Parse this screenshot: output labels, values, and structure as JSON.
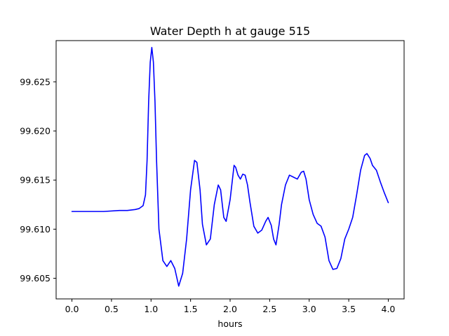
{
  "chart_data": {
    "type": "line",
    "title": "Water Depth h at gauge 515",
    "xlabel": "hours",
    "ylabel": "",
    "xlim": [
      -0.2,
      4.2
    ],
    "ylim": [
      99.6029,
      99.6292
    ],
    "grid": false,
    "xticks": [
      0.0,
      0.5,
      1.0,
      1.5,
      2.0,
      2.5,
      3.0,
      3.5,
      4.0
    ],
    "xtick_labels": [
      "0.0",
      "0.5",
      "1.0",
      "1.5",
      "2.0",
      "2.5",
      "3.0",
      "3.5",
      "4.0"
    ],
    "yticks": [
      99.605,
      99.61,
      99.615,
      99.62,
      99.625
    ],
    "ytick_labels": [
      "99.605",
      "99.610",
      "99.615",
      "99.620",
      "99.625"
    ],
    "series": [
      {
        "color": "#0000ff",
        "x": [
          0.0,
          0.2,
          0.4,
          0.6,
          0.7,
          0.8,
          0.85,
          0.9,
          0.93,
          0.95,
          0.97,
          0.99,
          1.01,
          1.03,
          1.05,
          1.07,
          1.1,
          1.15,
          1.2,
          1.25,
          1.3,
          1.35,
          1.4,
          1.45,
          1.5,
          1.55,
          1.58,
          1.62,
          1.65,
          1.7,
          1.75,
          1.8,
          1.85,
          1.88,
          1.92,
          1.95,
          2.0,
          2.05,
          2.07,
          2.1,
          2.13,
          2.16,
          2.19,
          2.22,
          2.25,
          2.3,
          2.35,
          2.4,
          2.45,
          2.48,
          2.52,
          2.55,
          2.58,
          2.62,
          2.65,
          2.7,
          2.75,
          2.8,
          2.85,
          2.9,
          2.93,
          2.96,
          3.0,
          3.05,
          3.1,
          3.15,
          3.2,
          3.25,
          3.3,
          3.35,
          3.4,
          3.45,
          3.5,
          3.55,
          3.6,
          3.65,
          3.7,
          3.73,
          3.77,
          3.8,
          3.85,
          3.9,
          3.95,
          4.0
        ],
        "y": [
          99.6118,
          99.6118,
          99.6118,
          99.6119,
          99.6119,
          99.612,
          99.6121,
          99.6124,
          99.6135,
          99.617,
          99.623,
          99.627,
          99.6285,
          99.627,
          99.623,
          99.617,
          99.61,
          99.6068,
          99.6062,
          99.6068,
          99.606,
          99.6042,
          99.6055,
          99.609,
          99.614,
          99.617,
          99.6168,
          99.614,
          99.6105,
          99.6084,
          99.609,
          99.6125,
          99.6145,
          99.614,
          99.6112,
          99.6108,
          99.613,
          99.6165,
          99.6163,
          99.6155,
          99.6151,
          99.6156,
          99.6155,
          99.6145,
          99.6128,
          99.6103,
          99.6096,
          99.6099,
          99.6108,
          99.6112,
          99.6104,
          99.609,
          99.6084,
          99.6105,
          99.6125,
          99.6145,
          99.6155,
          99.6153,
          99.6151,
          99.6158,
          99.6159,
          99.6151,
          99.613,
          99.6115,
          99.6106,
          99.6103,
          99.6092,
          99.6068,
          99.6059,
          99.606,
          99.607,
          99.609,
          99.61,
          99.6112,
          99.6135,
          99.616,
          99.6175,
          99.6177,
          99.6172,
          99.6165,
          99.616,
          99.6148,
          99.6137,
          99.6127
        ]
      }
    ]
  }
}
